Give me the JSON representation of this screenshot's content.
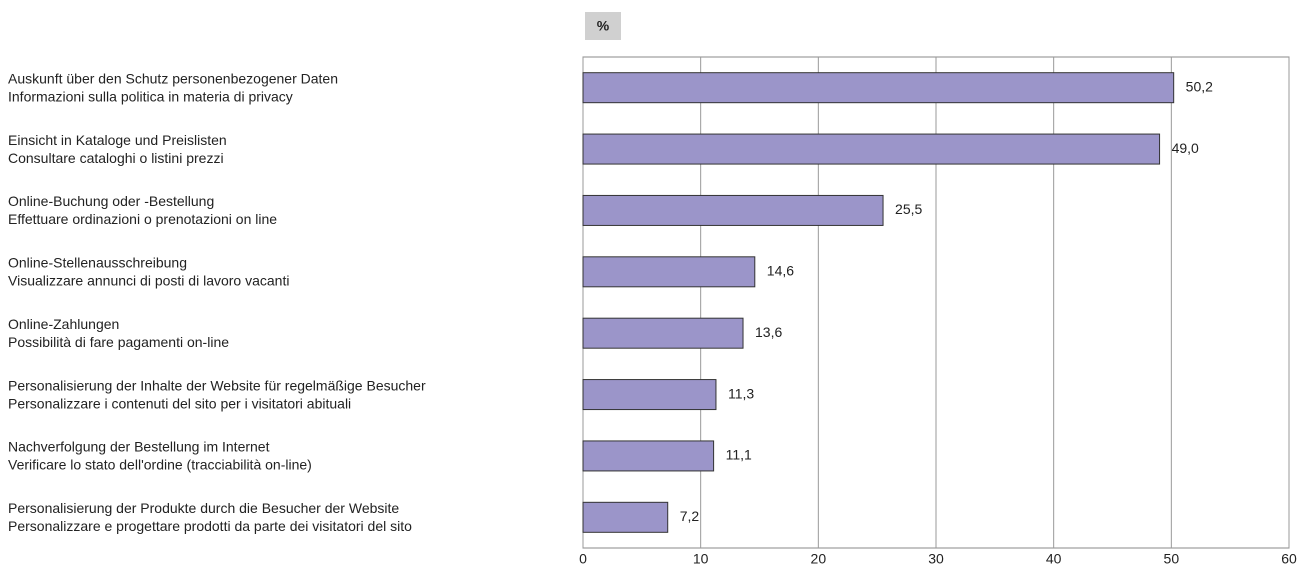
{
  "chart_data": {
    "type": "bar",
    "orientation": "horizontal",
    "unit": "%",
    "categories": [
      [
        "Auskunft über den Schutz personenbezogener Daten",
        "Informazioni sulla politica in materia di privacy"
      ],
      [
        "Einsicht in Kataloge und Preislisten",
        "Consultare cataloghi o listini prezzi"
      ],
      [
        "Online-Buchung oder -Bestellung",
        "Effettuare ordinazioni o prenotazioni on line"
      ],
      [
        "Online-Stellenausschreibung",
        "Visualizzare annunci di posti di lavoro vacanti"
      ],
      [
        "Online-Zahlungen",
        "Possibilità di fare pagamenti on-line"
      ],
      [
        "Personalisierung der Inhalte der Website für regelmäßige Besucher",
        "Personalizzare i contenuti del sito per i visitatori abituali"
      ],
      [
        "Nachverfolgung der Bestellung im Internet",
        "Verificare lo stato dell'ordine (tracciabilità on-line)"
      ],
      [
        "Personalisierung der Produkte durch die Besucher der Website",
        "Personalizzare e progettare prodotti da parte dei visitatori del sito"
      ]
    ],
    "values": [
      50.2,
      49.0,
      25.5,
      14.6,
      13.6,
      11.3,
      11.1,
      7.2
    ],
    "value_labels": [
      "50,2",
      "49,0",
      "25,5",
      "14,6",
      "13,6",
      "11,3",
      "11,1",
      "7,2"
    ],
    "color": "#9b95c9",
    "xlim": [
      0,
      60
    ],
    "xticks": [
      0,
      10,
      20,
      30,
      40,
      50,
      60
    ],
    "grid": true
  }
}
